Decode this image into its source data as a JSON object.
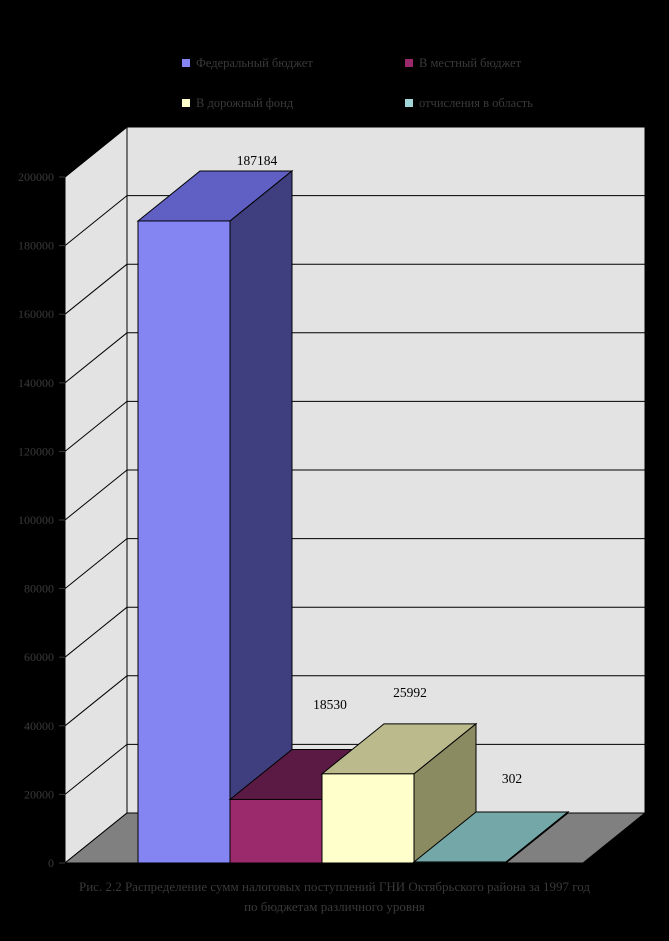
{
  "colors": {
    "background": "#000000",
    "text_dim": "#3A3A3A",
    "data_label": "#000000"
  },
  "legend": {
    "items": [
      {
        "label": "Федеральный бюджет",
        "color": "#8484F3"
      },
      {
        "label": "В местный бюджет",
        "color": "#9A2A6C"
      },
      {
        "label": "В дорожный фонд",
        "color": "#FFFFCC"
      },
      {
        "label": "отчисления в область",
        "color": "#A0D6D6"
      }
    ]
  },
  "chart_data": {
    "type": "bar",
    "projection": "3d",
    "title": "",
    "categories": [
      "Федеральный бюджет",
      "В местный бюджет",
      "В дорожный фонд",
      "отчисления в область"
    ],
    "values": [
      187184,
      18530,
      25992,
      302
    ],
    "data_labels": [
      "187184",
      "18530",
      "25992",
      "302"
    ],
    "ylim": [
      0,
      200000
    ],
    "ytick_step": 20000,
    "ytick_labels": [
      "0",
      "20000",
      "40000",
      "60000",
      "80000",
      "100000",
      "120000",
      "140000",
      "160000",
      "180000",
      "200000"
    ],
    "series_colors": [
      {
        "front": "#8484F3",
        "top": "#6060C4",
        "side": "#3F3F7F"
      },
      {
        "front": "#9A2A6C",
        "top": "#5A1A44",
        "side": "#4C1639"
      },
      {
        "front": "#FFFFCC",
        "top": "#BABA8D",
        "side": "#8B8B61"
      },
      {
        "front": "#C8F0F0",
        "top": "#74A8A8",
        "side": "#4F7A7A"
      }
    ],
    "wall_color": "#E3E3E3",
    "floor_color": "#808080",
    "gridline_color": "#000000",
    "grid": true,
    "legend_position": "top"
  },
  "caption": {
    "line1": "Рис. 2.2 Распределение сумм налоговых поступлений ГНИ Октябрьского района за 1997 год",
    "line2": "по бюджетам различного уровня"
  }
}
